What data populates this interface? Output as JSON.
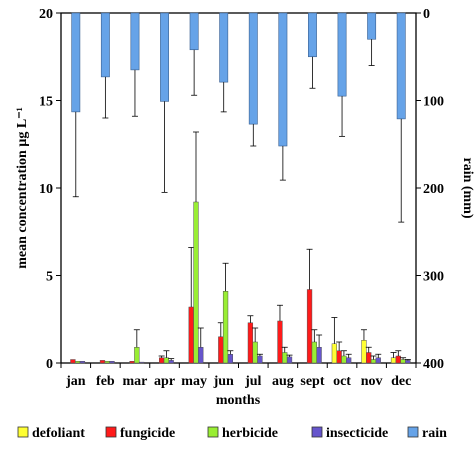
{
  "chart_data": {
    "type": "bar",
    "title": "",
    "xlabel": "months",
    "ylabel": "mean concentration µg L⁻¹",
    "ylabel_right": "rain (mm)",
    "ylim": [
      0,
      20
    ],
    "ylim_right": [
      0,
      400
    ],
    "y_right_inverted": true,
    "yticks": [
      0,
      5,
      10,
      15,
      20
    ],
    "yticks_right": [
      0,
      100,
      200,
      300,
      400
    ],
    "grid": false,
    "legend_position": "bottom",
    "categories": [
      "jan",
      "feb",
      "mar",
      "apr",
      "may",
      "jun",
      "jul",
      "aug",
      "sept",
      "oct",
      "nov",
      "dec"
    ],
    "series": [
      {
        "name": "defoliant",
        "color": "#ffff33",
        "values": [
          0,
          0,
          0,
          0,
          0,
          0,
          0,
          0,
          0,
          1.1,
          1.3,
          0.3
        ],
        "errors": [
          0,
          0,
          0,
          0,
          0,
          0,
          0,
          0,
          0,
          1.5,
          0.6,
          0.3
        ]
      },
      {
        "name": "fungicide",
        "color": "#ff1a1a",
        "values": [
          0.2,
          0.15,
          0.1,
          0.3,
          3.2,
          1.5,
          2.3,
          2.4,
          4.2,
          0.7,
          0.6,
          0.4
        ],
        "errors": [
          0,
          0,
          0,
          0.1,
          3.4,
          0.8,
          0.4,
          0.9,
          2.3,
          0.5,
          0.3,
          0.3
        ]
      },
      {
        "name": "herbicide",
        "color": "#99ee33",
        "values": [
          0.1,
          0.1,
          0.9,
          0.3,
          9.2,
          4.1,
          1.2,
          0.6,
          1.2,
          0.4,
          0.2,
          0.2
        ],
        "errors": [
          0,
          0,
          1.0,
          0.4,
          4.0,
          1.6,
          0.8,
          0.3,
          0.7,
          0.3,
          0.2,
          0.1
        ]
      },
      {
        "name": "insecticide",
        "color": "#6655cc",
        "values": [
          0.1,
          0.1,
          0.05,
          0.15,
          0.9,
          0.5,
          0.4,
          0.35,
          0.9,
          0.3,
          0.3,
          0.15
        ],
        "errors": [
          0,
          0,
          0,
          0.1,
          1.1,
          0.2,
          0.1,
          0.1,
          0.7,
          0.2,
          0.2,
          0.05
        ]
      },
      {
        "name": "rain",
        "color": "#66a3e8",
        "axis": "right",
        "values": [
          113,
          73,
          65,
          101,
          42,
          79,
          127,
          152,
          50,
          95,
          30,
          121
        ],
        "errors": [
          97,
          47,
          53,
          104,
          52,
          34,
          25,
          39,
          36,
          46,
          30,
          118
        ]
      }
    ]
  }
}
